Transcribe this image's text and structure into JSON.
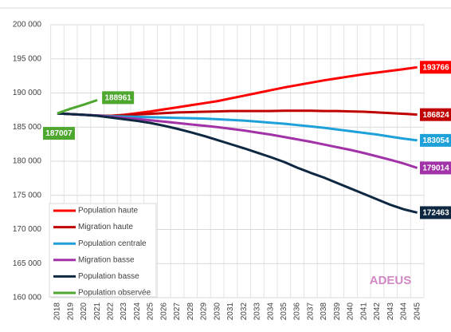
{
  "chart_data": {
    "type": "line",
    "categories": [
      "2018",
      "2019",
      "2020",
      "2021",
      "2022",
      "2023",
      "2024",
      "2025",
      "2026",
      "2027",
      "2028",
      "2029",
      "2030",
      "2031",
      "2032",
      "2033",
      "2034",
      "2035",
      "2036",
      "2037",
      "2038",
      "2039",
      "2040",
      "2041",
      "2042",
      "2043",
      "2044",
      "2045"
    ],
    "series": [
      {
        "name": "Population haute",
        "color": "#ff0000",
        "values": [
          187007,
          186900,
          186800,
          186700,
          186650,
          186800,
          187050,
          187300,
          187600,
          187900,
          188200,
          188500,
          188800,
          189200,
          189600,
          190000,
          190400,
          190800,
          191150,
          191500,
          191850,
          192150,
          192450,
          192750,
          193000,
          193250,
          193500,
          193766
        ]
      },
      {
        "name": "Migration haute",
        "color": "#c00000",
        "values": [
          187007,
          186900,
          186800,
          186700,
          186650,
          186750,
          186850,
          186950,
          187050,
          187150,
          187200,
          187250,
          187300,
          187350,
          187350,
          187350,
          187350,
          187400,
          187400,
          187400,
          187350,
          187350,
          187300,
          187250,
          187150,
          187050,
          186950,
          186824
        ]
      },
      {
        "name": "Population centrale",
        "color": "#1ea0d8",
        "values": [
          187007,
          186900,
          186800,
          186700,
          186600,
          186550,
          186500,
          186450,
          186400,
          186350,
          186300,
          186250,
          186150,
          186050,
          185950,
          185800,
          185650,
          185500,
          185300,
          185100,
          184900,
          184650,
          184400,
          184150,
          183900,
          183600,
          183300,
          183054
        ]
      },
      {
        "name": "Migration basse",
        "color": "#a232a8",
        "values": [
          187007,
          186900,
          186800,
          186700,
          186500,
          186350,
          186200,
          186000,
          185800,
          185600,
          185400,
          185200,
          185000,
          184750,
          184500,
          184200,
          183900,
          183550,
          183200,
          182850,
          182450,
          182050,
          181650,
          181200,
          180700,
          180200,
          179650,
          179014
        ]
      },
      {
        "name": "Population basse",
        "color": "#0e2841",
        "values": [
          187007,
          186900,
          186800,
          186650,
          186400,
          186150,
          185900,
          185600,
          185200,
          184750,
          184250,
          183700,
          183100,
          182500,
          181900,
          181250,
          180600,
          179900,
          179050,
          178300,
          177600,
          176800,
          176000,
          175200,
          174400,
          173600,
          172950,
          172463
        ]
      },
      {
        "name": "Population observée",
        "color": "#4ea72e",
        "values": [
          187007,
          187700,
          188300,
          188961,
          null,
          null,
          null,
          null,
          null,
          null,
          null,
          null,
          null,
          null,
          null,
          null,
          null,
          null,
          null,
          null,
          null,
          null,
          null,
          null,
          null,
          null,
          null,
          null
        ]
      }
    ],
    "ylim": [
      160000,
      200000
    ],
    "yticks": [
      {
        "value": 160000,
        "label": "160 000"
      },
      {
        "value": 165000,
        "label": "165 000"
      },
      {
        "value": 170000,
        "label": "170 000"
      },
      {
        "value": 175000,
        "label": "175 000"
      },
      {
        "value": 180000,
        "label": "180 000"
      },
      {
        "value": 185000,
        "label": "185 000"
      },
      {
        "value": 190000,
        "label": "190 000"
      },
      {
        "value": 195000,
        "label": "195 000"
      },
      {
        "value": 200000,
        "label": "200 000"
      }
    ],
    "grid": true,
    "legend": "lower left",
    "watermark": "ADEUS"
  }
}
